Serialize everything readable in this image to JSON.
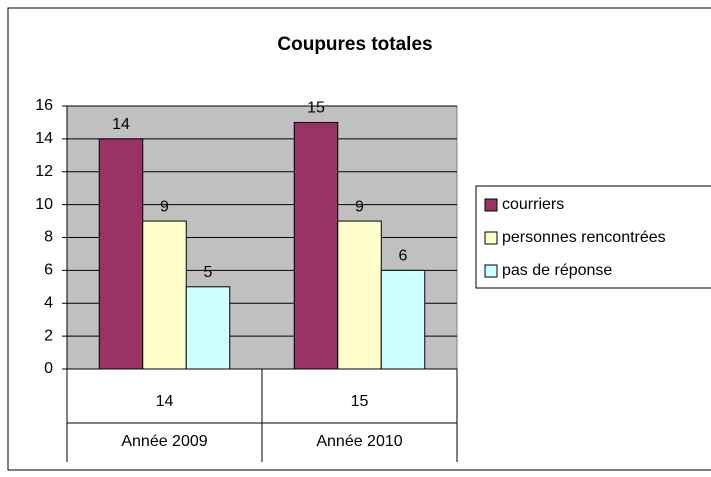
{
  "chart_data": {
    "type": "bar",
    "title": "Coupures totales",
    "categories": [
      "Année 2009",
      "Année 2010"
    ],
    "inner_categories": [
      "14",
      "15"
    ],
    "series": [
      {
        "name": "courriers",
        "color": "#993366",
        "values": [
          14,
          15
        ]
      },
      {
        "name": "personnes rencontrées",
        "color": "#ffffcc",
        "values": [
          9,
          9
        ]
      },
      {
        "name": "pas de réponse",
        "color": "#ccffff",
        "values": [
          5,
          6
        ]
      }
    ],
    "ylim": [
      0,
      16
    ],
    "yticks": [
      0,
      2,
      4,
      6,
      8,
      10,
      12,
      14,
      16
    ],
    "grid": true,
    "plot_background": "#c0c0c0",
    "legend": "right"
  }
}
